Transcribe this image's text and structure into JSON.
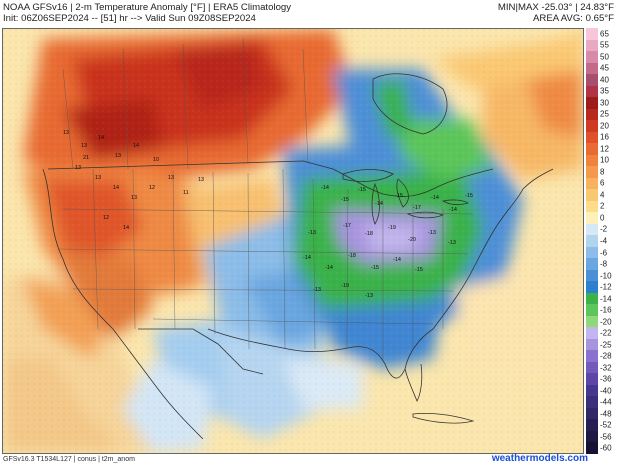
{
  "header": {
    "title": "NOAA GFSv16 | 2-m Temperature Anomaly [°F] | ERA5 Climatology",
    "init": "Init: 06Z06SEP2024 -- [51] hr --> Valid Sun 09Z08SEP2024",
    "minmax": "MIN|MAX -25.03° | 24.83°F",
    "area_avg": "AREA AVG: 0.65°F"
  },
  "colorbar": {
    "labels": [
      "65",
      "55",
      "50",
      "45",
      "40",
      "35",
      "30",
      "25",
      "20",
      "16",
      "12",
      "10",
      "8",
      "6",
      "4",
      "2",
      "0",
      "-2",
      "-4",
      "-6",
      "-8",
      "-10",
      "-12",
      "-14",
      "-16",
      "-20",
      "-22",
      "-25",
      "-28",
      "-32",
      "-36",
      "-40",
      "-44",
      "-48",
      "-52",
      "-56",
      "-60"
    ],
    "colors": [
      "#f7c6d8",
      "#e9a9c3",
      "#d88aa8",
      "#c46b8a",
      "#a84f6e",
      "#b2324a",
      "#9e1b1b",
      "#b8281d",
      "#cf3a22",
      "#e0512a",
      "#ea6a34",
      "#f0823e",
      "#f59a4c",
      "#f8b25e",
      "#fbc872",
      "#fddc8c",
      "#fdf0b8",
      "#d6e8f5",
      "#b3d4ef",
      "#8cbde8",
      "#6aa6e0",
      "#4d8fd7",
      "#2d7fd0",
      "#3bb24a",
      "#5cc65a",
      "#8fd97c",
      "#c2b7ec",
      "#a893df",
      "#8a70cf",
      "#7359bd",
      "#5c47a6",
      "#46388e",
      "#3a2f7a",
      "#302766",
      "#271f54",
      "#1e1843",
      "#161234"
    ]
  },
  "map_labels": {
    "west_values": [
      "13",
      "13",
      "14",
      "13",
      "14",
      "10",
      "13",
      "13",
      "21",
      "14",
      "13",
      "12",
      "13",
      "11",
      "13",
      "12",
      "14"
    ],
    "east_values": [
      "-14",
      "-15",
      "-15",
      "-14",
      "-15",
      "-17",
      "-14",
      "-14",
      "-15",
      "-17",
      "-18",
      "-19",
      "-13",
      "-20",
      "-13",
      "-13",
      "-14",
      "-14",
      "-18",
      "-15",
      "-14",
      "-15",
      "-13",
      "-19",
      "-13"
    ]
  },
  "footer": {
    "left": "GFSv16.3 T1534L127 | conus | t2m_anom",
    "source": "weathermodels.com"
  }
}
